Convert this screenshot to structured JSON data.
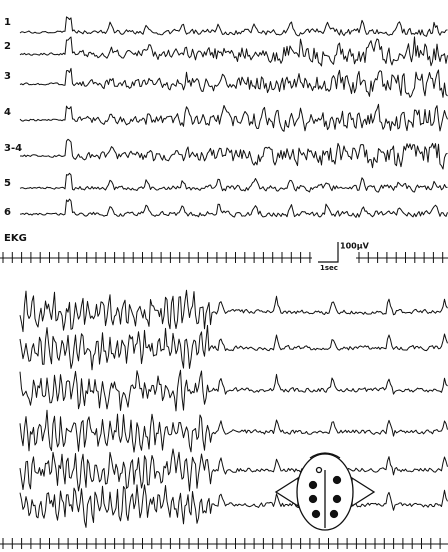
{
  "top_panel": {
    "channel_labels": [
      "1",
      "2",
      "3",
      "4",
      "3-4",
      "5",
      "6",
      "EKG"
    ],
    "scale_voltage": "100μV",
    "scale_time": "1sec"
  }
}
